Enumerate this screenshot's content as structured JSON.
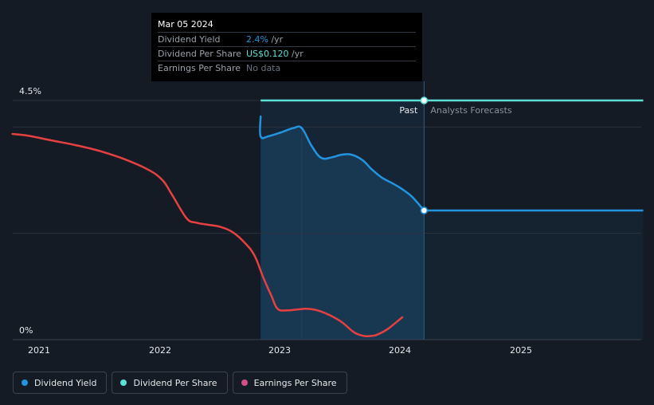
{
  "colors": {
    "background": "#151b24",
    "dividend_yield": "#2394df",
    "dividend_per_share": "#5ce1d9",
    "earnings_per_share": "#e64141",
    "earnings_per_share_legend": "#d64d8c",
    "past_shade": "#1b3a57"
  },
  "tooltip": {
    "date": "Mar 05 2024",
    "rows": [
      {
        "label": "Dividend Yield",
        "value": "2.4%",
        "unit": " /yr",
        "value_color": "#2394df"
      },
      {
        "label": "Dividend Per Share",
        "value": "US$0.120",
        "unit": " /yr",
        "value_color": "#5ce1d9"
      },
      {
        "label": "Earnings Per Share",
        "value": "No data",
        "unit": "",
        "value_color": "#6b7480"
      }
    ]
  },
  "legend": [
    {
      "label": "Dividend Yield",
      "color": "#2394df"
    },
    {
      "label": "Dividend Per Share",
      "color": "#5ce1d9"
    },
    {
      "label": "Earnings Per Share",
      "color": "#d64d8c"
    }
  ],
  "chart_data": {
    "type": "line",
    "title": "",
    "xlabel": "",
    "ylabel": "",
    "x_ticks": [
      "2021",
      "2022",
      "2023",
      "2024",
      "2025"
    ],
    "y_tick_labels": [
      "4.5%",
      "0%"
    ],
    "ylim": [
      0,
      4.5
    ],
    "xlim": [
      2020.78,
      2025.99
    ],
    "past_label": "Past",
    "forecast_label": "Analysts Forecasts",
    "past_start": 2022.83,
    "past_end": 2024.18,
    "grid": true,
    "series": [
      {
        "name": "Dividend Yield",
        "color": "#2394df",
        "x": [
          2022.83,
          2022.83,
          2022.9,
          2023.0,
          2023.1,
          2023.17,
          2023.25,
          2023.33,
          2023.42,
          2023.5,
          2023.58,
          2023.67,
          2023.75,
          2023.83,
          2023.92,
          2024.0,
          2024.08,
          2024.18
        ],
        "y": [
          4.2,
          3.82,
          3.83,
          3.9,
          3.98,
          3.98,
          3.65,
          3.42,
          3.43,
          3.48,
          3.48,
          3.38,
          3.2,
          3.05,
          2.94,
          2.83,
          2.69,
          2.43
        ]
      },
      {
        "name": "Dividend Yield (forecast)",
        "color": "#2394df",
        "x": [
          2024.18,
          2025.99
        ],
        "y": [
          2.43,
          2.43
        ]
      },
      {
        "name": "Dividend Per Share",
        "color": "#5ce1d9",
        "x": [
          2022.83,
          2025.99
        ],
        "y": [
          4.5,
          4.5
        ]
      },
      {
        "name": "Earnings Per Share",
        "color": "#e64141",
        "x": [
          2020.78,
          2020.9,
          2021.1,
          2021.3,
          2021.5,
          2021.7,
          2021.9,
          2022.02,
          2022.1,
          2022.22,
          2022.3,
          2022.4,
          2022.5,
          2022.6,
          2022.7,
          2022.78,
          2022.85,
          2022.92,
          2022.97,
          2023.05,
          2023.2,
          2023.3,
          2023.4,
          2023.5,
          2023.6,
          2023.68,
          2023.75,
          2023.8,
          2023.88,
          2024.0
        ],
        "y": [
          3.87,
          3.84,
          3.75,
          3.66,
          3.55,
          3.4,
          3.2,
          3.0,
          2.72,
          2.28,
          2.2,
          2.16,
          2.12,
          2.02,
          1.82,
          1.58,
          1.18,
          0.82,
          0.58,
          0.55,
          0.58,
          0.55,
          0.46,
          0.33,
          0.14,
          0.07,
          0.07,
          0.1,
          0.2,
          0.42
        ]
      }
    ],
    "markers": [
      {
        "series": "Dividend Per Share",
        "x": 2024.18,
        "y": 4.5
      },
      {
        "series": "Dividend Yield",
        "x": 2024.18,
        "y": 2.43
      }
    ]
  }
}
